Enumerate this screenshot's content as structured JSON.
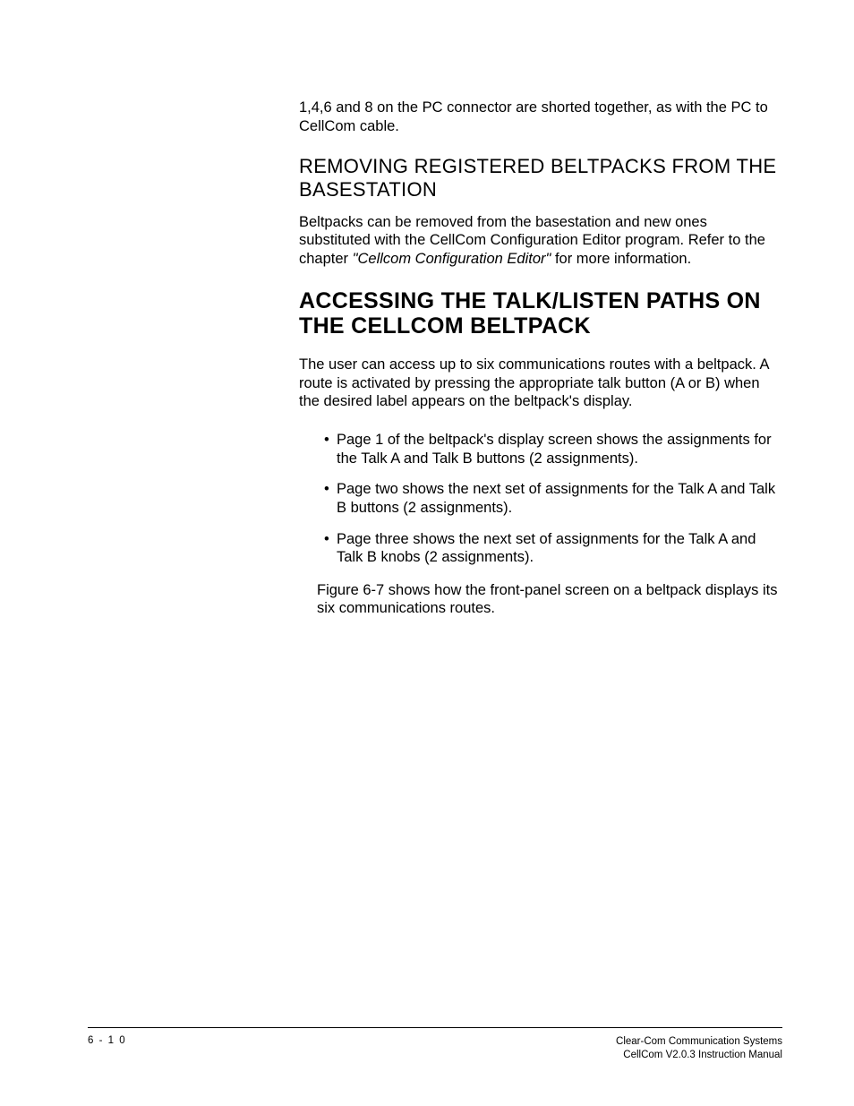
{
  "intro_paragraph": "1,4,6 and 8 on the PC connector are shorted together, as with the PC to CellCom cable.",
  "section1": {
    "heading": "REMOVING REGISTERED BELTPACKS FROM THE BASESTATION",
    "body_pre": "Beltpacks can be removed from the basestation and new ones substituted with the CellCom Configuration Editor program. Refer to the chapter ",
    "body_italic": "\"Cellcom Configuration Editor\"",
    "body_post": "  for more information."
  },
  "section2": {
    "heading": "ACCESSING THE TALK/LISTEN PATHS ON THE CELLCOM BELTPACK",
    "intro": "The user can access up to six communications routes with a beltpack. A route is activated by pressing the appropriate talk button (A or B) when the desired label appears on the beltpack's display.",
    "bullets": [
      "Page 1 of the beltpack's display screen shows the assignments for the Talk A and Talk B buttons (2 assignments).",
      "Page two shows the next set of assignments for the Talk A and Talk B buttons (2 assignments).",
      "Page three shows the next set of assignments for the Talk A and Talk B knobs (2 assignments)."
    ],
    "after_list": "Figure 6-7 shows how the front-panel screen on a beltpack displays its six communications routes."
  },
  "footer": {
    "page_number": "6 - 1 0",
    "right_line1": "Clear-Com Communication Systems",
    "right_line2": "CellCom V2.0.3 Instruction Manual"
  },
  "colors": {
    "background": "#ffffff",
    "text": "#000000",
    "rule": "#000000"
  },
  "typography": {
    "body_fontsize": 16.5,
    "section_heading_fontsize": 22,
    "major_heading_fontsize": 25,
    "footer_fontsize": 11.5
  }
}
